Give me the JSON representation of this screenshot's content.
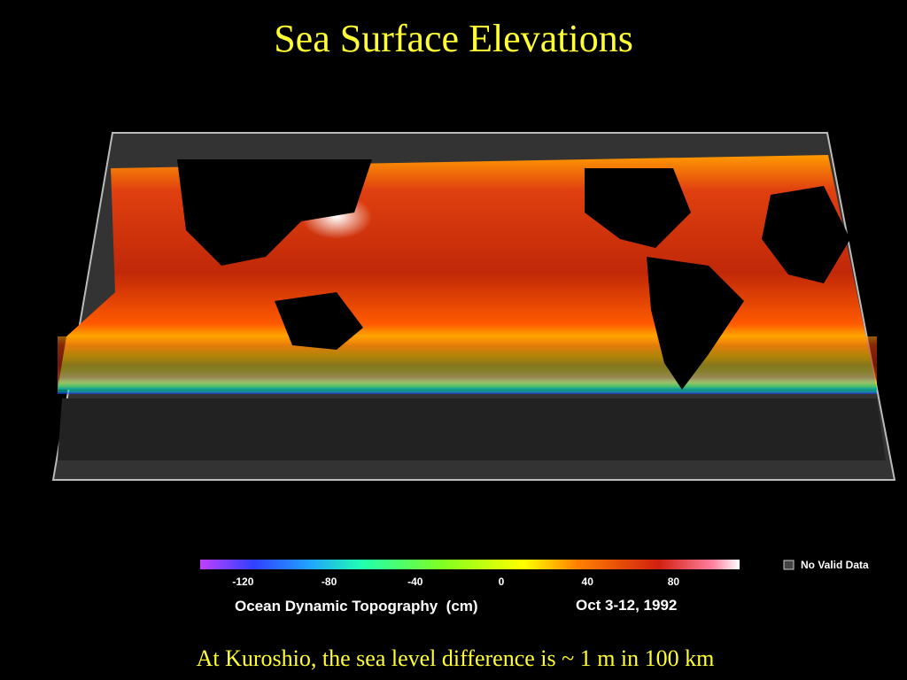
{
  "header": {
    "title": "Sea Surface Elevations"
  },
  "legend": {
    "ticks": [
      -120,
      -80,
      -40,
      0,
      40,
      80
    ],
    "no_data": "No Valid Data",
    "quantity": "Ocean Dynamic Topography  (cm)",
    "date": "Oct 3-12, 1992"
  },
  "caption": "At Kuroshio, the sea level difference is ~ 1 m in 100 km"
}
